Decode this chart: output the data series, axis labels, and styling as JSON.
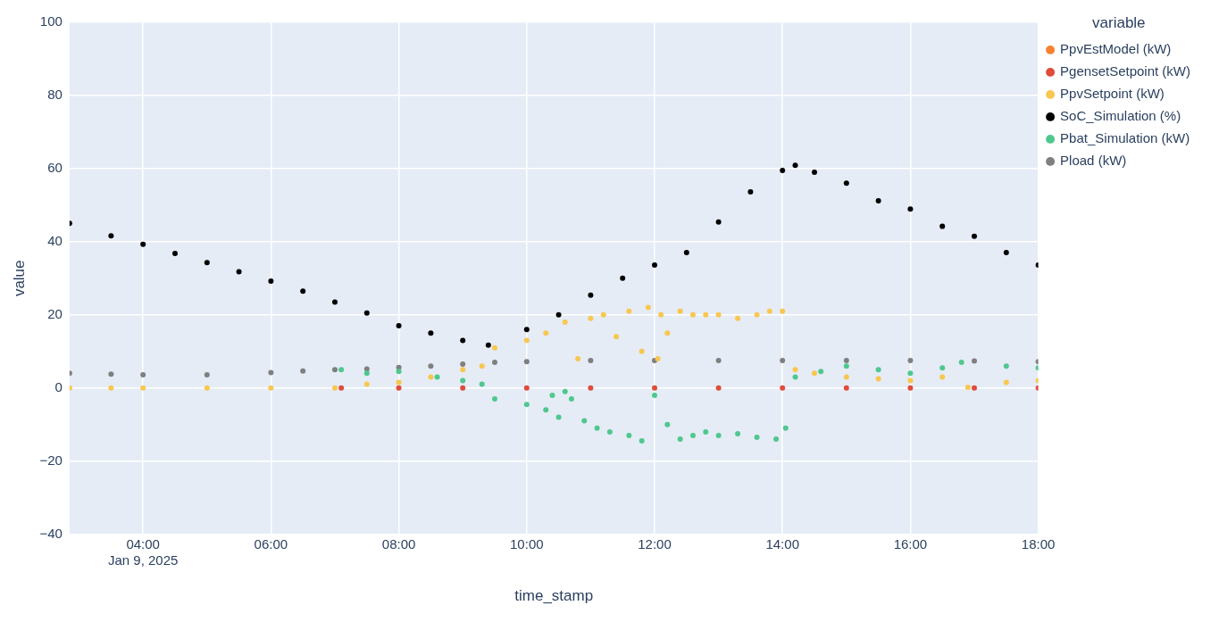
{
  "chart_data": {
    "type": "scatter",
    "xlabel": "time_stamp",
    "ylabel": "value",
    "legend_title": "variable",
    "legend": "top right",
    "grid": true,
    "marker": "circle",
    "xlim": [
      2.85,
      18
    ],
    "xticks": [
      {
        "value": 4,
        "label": "04:00\nJan 9, 2025"
      },
      {
        "value": 6,
        "label": "06:00"
      },
      {
        "value": 8,
        "label": "08:00"
      },
      {
        "value": 10,
        "label": "10:00"
      },
      {
        "value": 12,
        "label": "12:00"
      },
      {
        "value": 14,
        "label": "14:00"
      },
      {
        "value": 16,
        "label": "16:00"
      },
      {
        "value": 18,
        "label": "18:00"
      }
    ],
    "ylim": [
      -40,
      100
    ],
    "yticks": [
      -40,
      -20,
      0,
      20,
      40,
      60,
      80,
      100
    ],
    "series": [
      {
        "name": "PpvEstModel (kW)",
        "color": "#f5822f"
      },
      {
        "name": "PgensetSetpoint (kW)",
        "color": "#e04b3a",
        "x": [
          7.1,
          8,
          9,
          10,
          11,
          12,
          13,
          14,
          15,
          16,
          17,
          18
        ],
        "values": [
          0,
          0,
          0,
          0,
          0,
          0,
          0,
          0,
          0,
          0,
          0,
          0
        ]
      },
      {
        "name": "PpvSetpoint (kW)",
        "color": "#f8c74f",
        "x": [
          2.85,
          3.5,
          4,
          5,
          6,
          7,
          7.5,
          8,
          8.5,
          9,
          9.3,
          9.5,
          10,
          10.3,
          10.6,
          10.8,
          11,
          11.2,
          11.4,
          11.6,
          11.8,
          11.9,
          12.05,
          12.1,
          12.2,
          12.4,
          12.6,
          12.8,
          13,
          13.3,
          13.6,
          13.8,
          14,
          14.2,
          14.5,
          15,
          15.5,
          16,
          16.5,
          16.9,
          17.5,
          18
        ],
        "values": [
          0,
          0,
          0,
          0,
          0,
          0,
          1,
          1.5,
          3,
          5,
          6,
          11,
          13,
          15,
          18,
          8,
          19,
          20,
          14,
          21,
          10,
          22,
          8,
          20,
          15,
          21,
          20,
          20,
          20,
          19,
          20,
          21,
          21,
          5,
          4,
          3,
          2.5,
          2,
          3,
          0.2,
          1.5,
          2
        ]
      },
      {
        "name": "SoC_Simulation (%)",
        "color": "#000000",
        "x": [
          2.85,
          3.5,
          4,
          4.5,
          5,
          5.5,
          6,
          6.5,
          7,
          7.5,
          8,
          8.5,
          9,
          9.4,
          10,
          10.5,
          11,
          11.5,
          12,
          12.5,
          13,
          13.5,
          14,
          14.2,
          14.5,
          15,
          15.5,
          16,
          16.5,
          17,
          17.5,
          18
        ],
        "values": [
          45,
          41.6,
          39.3,
          36.8,
          34.3,
          31.8,
          29.2,
          26.5,
          23.5,
          20.5,
          17,
          15,
          13,
          11.7,
          16,
          20,
          25.4,
          30,
          33.6,
          37,
          45.4,
          53.6,
          59.5,
          60.9,
          59,
          56,
          51.2,
          48.9,
          44.2,
          41.5,
          37,
          33.6
        ]
      },
      {
        "name": "Pbat_Simulation (kW)",
        "color": "#4fc88f",
        "x": [
          7.1,
          7.5,
          8,
          8.6,
          9,
          9.3,
          9.5,
          10,
          10.3,
          10.4,
          10.5,
          10.6,
          10.7,
          10.9,
          11.1,
          11.3,
          11.6,
          11.8,
          12,
          12.2,
          12.4,
          12.6,
          12.8,
          13,
          13.3,
          13.6,
          13.9,
          14.05,
          14.2,
          14.6,
          15,
          15.5,
          16,
          16.5,
          16.8,
          17.5,
          18
        ],
        "values": [
          5,
          4,
          4.5,
          3,
          2,
          1,
          -3,
          -4.5,
          -6,
          -2,
          -8,
          -1,
          -3,
          -9,
          -11,
          -12,
          -13,
          -14.5,
          -2,
          -10,
          -14,
          -13,
          -12,
          -13,
          -12.5,
          -13.5,
          -14,
          -11,
          3,
          4.5,
          6,
          5,
          4,
          5.5,
          7,
          6,
          5.5
        ]
      },
      {
        "name": "Pload (kW)",
        "color": "#7f7f7f",
        "x": [
          2.85,
          3.5,
          4,
          5,
          6,
          6.5,
          7,
          7.5,
          8,
          8.5,
          9,
          9.5,
          10,
          11,
          12,
          13,
          14,
          15,
          16,
          17,
          18
        ],
        "values": [
          4,
          3.8,
          3.6,
          3.6,
          4.2,
          4.6,
          5,
          5.2,
          5.6,
          6,
          6.5,
          7,
          7.2,
          7.5,
          7.5,
          7.5,
          7.5,
          7.5,
          7.5,
          7.4,
          7.2
        ]
      }
    ]
  }
}
